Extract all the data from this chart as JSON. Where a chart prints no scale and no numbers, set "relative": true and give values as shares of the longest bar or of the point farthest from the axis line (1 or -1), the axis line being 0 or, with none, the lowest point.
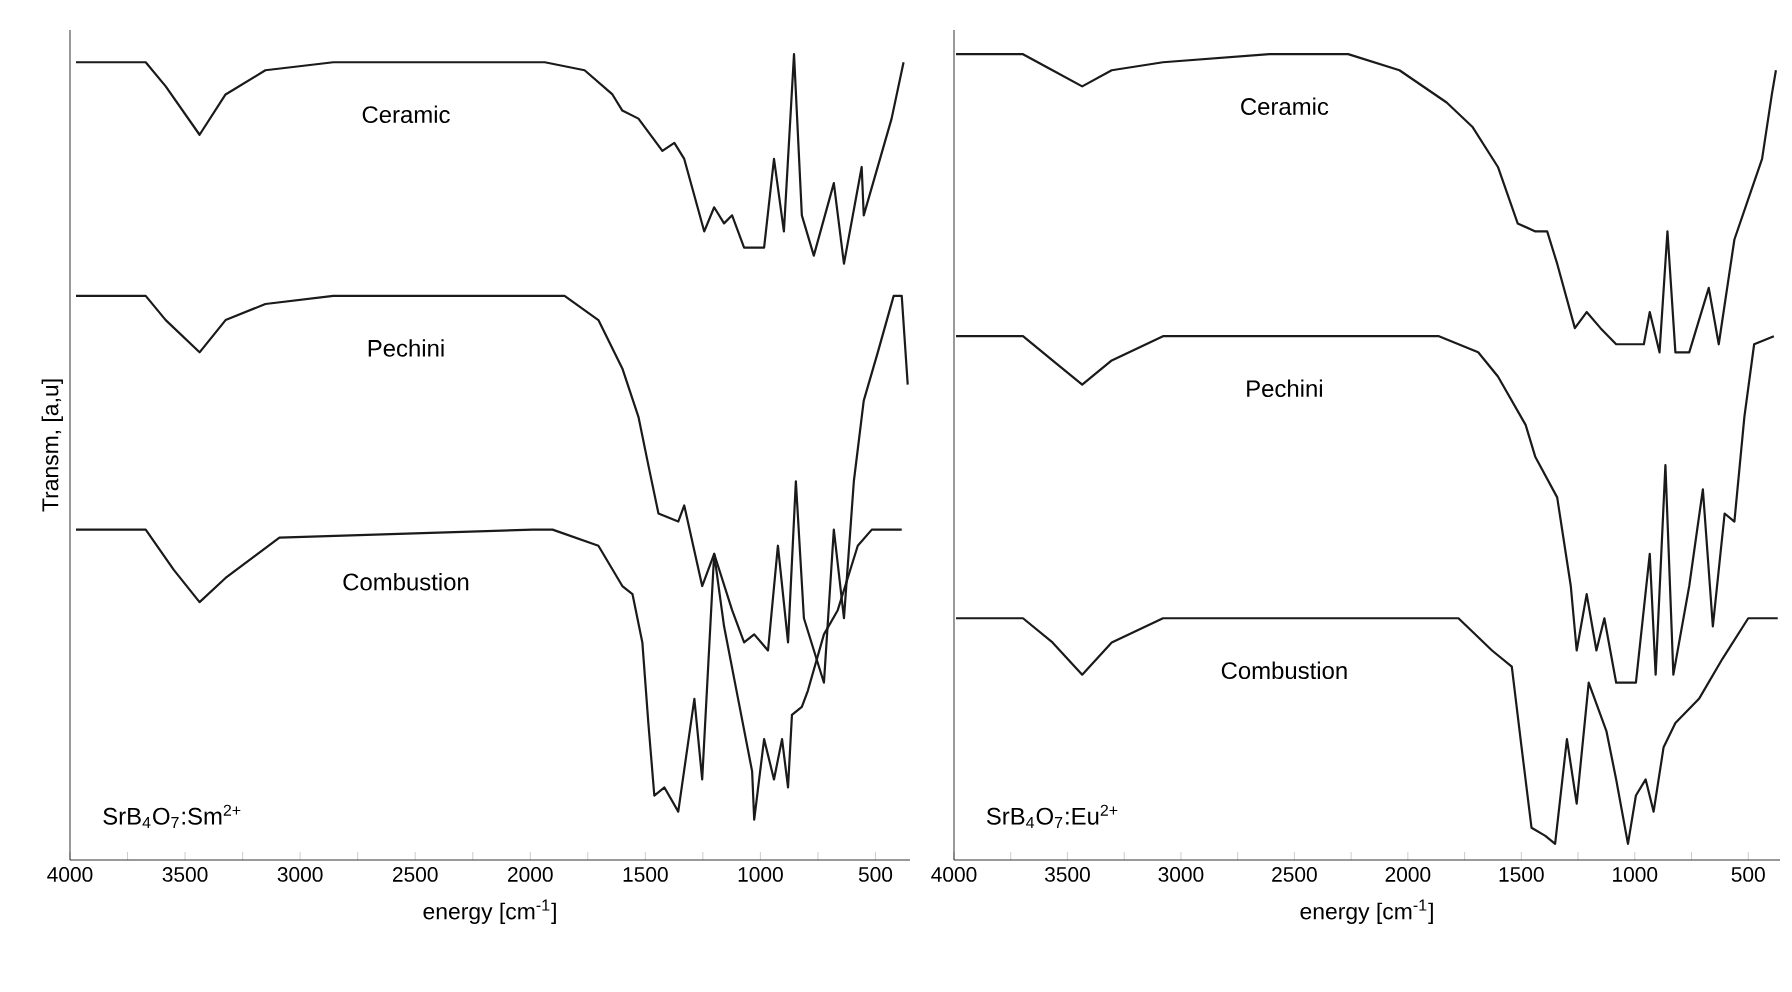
{
  "chart_data": [
    {
      "type": "line",
      "relative": true,
      "xlabel": "energy [cm$^{-1}$]",
      "ylabel": "Transm, [a,u]",
      "annotations": [
        "SrB$_{4}$O$_{7}$:Sm$^{2+}$"
      ],
      "xlim": [
        4000,
        350
      ],
      "xticks": [
        4000,
        {
          "value": 3750,
          "label": null
        },
        3500,
        {
          "value": 3250,
          "label": null
        },
        3000,
        {
          "value": 2750,
          "label": null
        },
        2500,
        {
          "value": 2250,
          "label": null
        },
        2000,
        {
          "value": 1750,
          "label": null
        },
        1500,
        {
          "value": 1250,
          "label": null
        },
        1000,
        {
          "value": 750,
          "label": null
        },
        500
      ],
      "series": [
        {
          "name": "Ceramic",
          "color": "#1a1a1a",
          "x": [
            3974,
            3671,
            3584,
            3437,
            3324,
            3151,
            2856,
            1937,
            1764,
            1643,
            1600,
            1530,
            1426,
            1374,
            1331,
            1244,
            1201,
            1158,
            1123,
            1071,
            984,
            941,
            898,
            854,
            820,
            768,
            681,
            637,
            560,
            551,
            430,
            378
          ],
          "values": [
            0.99,
            0.99,
            0.96,
            0.9,
            0.95,
            0.98,
            0.99,
            0.99,
            0.98,
            0.95,
            0.93,
            0.92,
            0.88,
            0.89,
            0.87,
            0.78,
            0.81,
            0.79,
            0.8,
            0.76,
            0.76,
            0.87,
            0.78,
            1,
            0.8,
            0.75,
            0.84,
            0.74,
            0.86,
            0.8,
            0.92,
            0.99
          ]
        },
        {
          "name": "Pechini",
          "color": "#1a1a1a",
          "x": [
            3974,
            3671,
            3584,
            3437,
            3324,
            3151,
            2856,
            1851,
            1704,
            1600,
            1530,
            1487,
            1443,
            1357,
            1331,
            1253,
            1201,
            1123,
            1071,
            1027,
            967,
            924,
            880,
            846,
            811,
            724,
            681,
            637,
            594,
            551,
            490,
            421,
            386,
            360
          ],
          "values": [
            0.7,
            0.7,
            0.67,
            0.63,
            0.67,
            0.69,
            0.7,
            0.7,
            0.67,
            0.61,
            0.55,
            0.49,
            0.43,
            0.42,
            0.44,
            0.34,
            0.38,
            0.31,
            0.27,
            0.28,
            0.26,
            0.39,
            0.27,
            0.47,
            0.3,
            0.22,
            0.41,
            0.3,
            0.47,
            0.57,
            0.63,
            0.7,
            0.7,
            0.59
          ]
        },
        {
          "name": "Combustion",
          "color": "#1a1a1a",
          "x": [
            3974,
            3671,
            3549,
            3437,
            3324,
            3090,
            1989,
            1903,
            1704,
            1600,
            1556,
            1513,
            1487,
            1461,
            1417,
            1357,
            1287,
            1253,
            1201,
            1158,
            1097,
            1036,
            1027,
            984,
            941,
            906,
            880,
            863,
            820,
            794,
            724,
            664,
            577,
            516,
            386
          ],
          "values": [
            0.41,
            0.41,
            0.36,
            0.32,
            0.35,
            0.4,
            0.41,
            0.41,
            0.39,
            0.34,
            0.33,
            0.27,
            0.17,
            0.08,
            0.09,
            0.06,
            0.2,
            0.1,
            0.38,
            0.29,
            0.2,
            0.11,
            0.05,
            0.15,
            0.1,
            0.15,
            0.09,
            0.18,
            0.19,
            0.21,
            0.28,
            0.31,
            0.39,
            0.41,
            0.41
          ]
        }
      ]
    },
    {
      "type": "line",
      "relative": true,
      "xlabel": "energy [cm$^{-1}$]",
      "annotations": [
        "SrB$_{4}$O$_{7}$:Eu$^{2+}$"
      ],
      "xlim": [
        4000,
        360
      ],
      "xticks": [
        4000,
        {
          "value": 3750,
          "label": null
        },
        3500,
        {
          "value": 3250,
          "label": null
        },
        3000,
        {
          "value": 2750,
          "label": null
        },
        2500,
        {
          "value": 2250,
          "label": null
        },
        2000,
        {
          "value": 1750,
          "label": null
        },
        1500,
        {
          "value": 1250,
          "label": null
        },
        1000,
        {
          "value": 750,
          "label": null
        },
        500
      ],
      "series": [
        {
          "name": "Ceramic",
          "color": "#1a1a1a",
          "x": [
            3991,
            3696,
            3566,
            3435,
            3305,
            3079,
            2610,
            2263,
            2037,
            1829,
            1716,
            1603,
            1516,
            1438,
            1386,
            1342,
            1264,
            1212,
            1151,
            1082,
            960,
            934,
            891,
            856,
            821,
            760,
            674,
            630,
            561,
            500,
            439,
            396,
            378
          ],
          "values": [
            1,
            1,
            0.98,
            0.96,
            0.98,
            0.99,
            1,
            1,
            0.98,
            0.94,
            0.91,
            0.86,
            0.79,
            0.78,
            0.78,
            0.74,
            0.66,
            0.68,
            0.66,
            0.64,
            0.64,
            0.68,
            0.63,
            0.78,
            0.63,
            0.63,
            0.71,
            0.64,
            0.77,
            0.82,
            0.87,
            0.95,
            0.98
          ]
        },
        {
          "name": "Pechini",
          "color": "#1a1a1a",
          "x": [
            3991,
            3696,
            3566,
            3435,
            3305,
            3079,
            1863,
            1690,
            1603,
            1481,
            1438,
            1342,
            1282,
            1256,
            1212,
            1169,
            1134,
            1082,
            995,
            934,
            908,
            865,
            830,
            760,
            700,
            656,
            604,
            561,
            517,
            474,
            387
          ],
          "values": [
            0.65,
            0.65,
            0.62,
            0.59,
            0.62,
            0.65,
            0.65,
            0.63,
            0.6,
            0.54,
            0.5,
            0.45,
            0.34,
            0.26,
            0.33,
            0.26,
            0.3,
            0.22,
            0.22,
            0.38,
            0.23,
            0.49,
            0.23,
            0.34,
            0.46,
            0.29,
            0.43,
            0.42,
            0.55,
            0.64,
            0.65
          ]
        },
        {
          "name": "Combustion",
          "color": "#1a1a1a",
          "x": [
            3991,
            3696,
            3566,
            3435,
            3305,
            3079,
            1777,
            1629,
            1542,
            1499,
            1455,
            1394,
            1351,
            1299,
            1256,
            1203,
            1125,
            1082,
            1030,
            995,
            952,
            917,
            873,
            821,
            717,
            613,
            500,
            370
          ],
          "values": [
            0.3,
            0.3,
            0.27,
            0.23,
            0.27,
            0.3,
            0.3,
            0.26,
            0.24,
            0.14,
            0.04,
            0.03,
            0.02,
            0.15,
            0.07,
            0.22,
            0.16,
            0.1,
            0.02,
            0.08,
            0.1,
            0.06,
            0.14,
            0.17,
            0.2,
            0.25,
            0.3,
            0.3
          ]
        }
      ]
    }
  ]
}
